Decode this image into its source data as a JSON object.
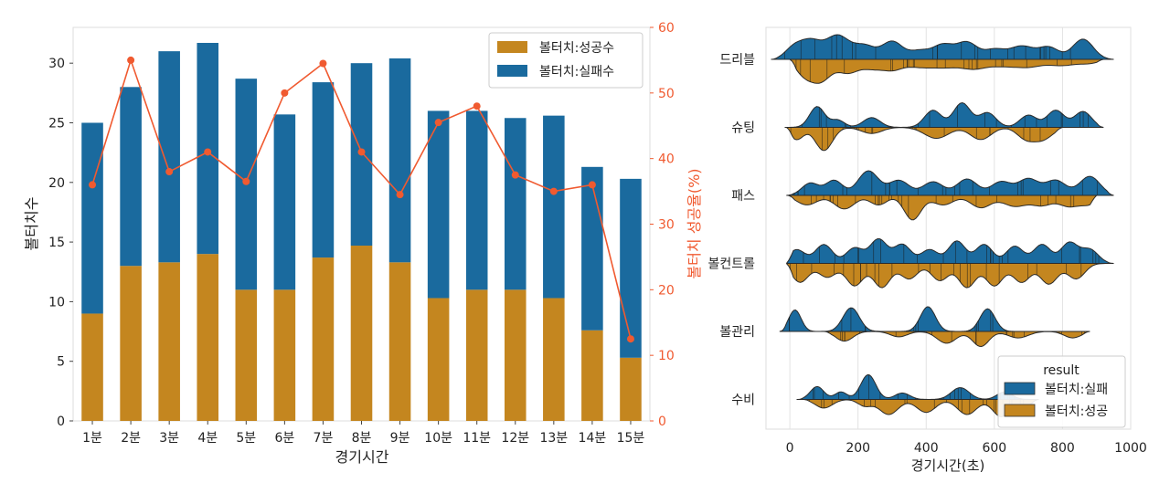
{
  "chart_data": [
    {
      "type": "bar",
      "subtype": "stacked-bar-with-secondary-line",
      "xlabel": "경기시간",
      "ylabel": "볼터치수",
      "y2label": "볼터치 성공율(%)",
      "categories": [
        "1분",
        "2분",
        "3분",
        "4분",
        "5분",
        "6분",
        "7분",
        "8분",
        "9분",
        "10분",
        "11분",
        "12분",
        "13분",
        "14분",
        "15분"
      ],
      "ylim": [
        0,
        33
      ],
      "yticks": [
        0,
        5,
        10,
        15,
        20,
        25,
        30
      ],
      "y2lim": [
        0,
        60
      ],
      "y2ticks": [
        0,
        10,
        20,
        30,
        40,
        50,
        60
      ],
      "series": [
        {
          "name": "볼터치:성공수",
          "color": "#c4861f",
          "values": [
            9,
            13,
            13.3,
            14,
            11,
            11,
            13.7,
            14.7,
            13.3,
            10.3,
            11,
            11,
            10.3,
            7.6,
            5.3
          ]
        },
        {
          "name": "볼터치:실패수",
          "color": "#1a6a9e",
          "values": [
            16,
            15,
            17.7,
            17.7,
            17.7,
            14.7,
            14.7,
            15.3,
            17.1,
            15.7,
            15,
            14.4,
            15.3,
            13.7,
            15
          ]
        }
      ],
      "line": {
        "name": "볼터치 성공율(%)",
        "color": "#f05a30",
        "axis": "right",
        "values": [
          36,
          55,
          38,
          41,
          36.5,
          50,
          54.5,
          41,
          34.5,
          45.5,
          48,
          37.5,
          35,
          36,
          12.5
        ]
      },
      "legend_position": "top-right",
      "grid": false
    },
    {
      "type": "violin",
      "subtype": "split-violin",
      "xlabel": "경기시간(초)",
      "xlim": [
        -70,
        1000
      ],
      "xticks": [
        0,
        200,
        400,
        600,
        800,
        1000
      ],
      "categories": [
        "드리블",
        "슈팅",
        "패스",
        "볼컨트롤",
        "볼관리",
        "수비"
      ],
      "legend_title": "result",
      "legend_position": "bottom-right",
      "grid": "vertical",
      "series": [
        {
          "name": "볼터치:실패",
          "color": "#1a6a9e"
        },
        {
          "name": "볼터치:성공",
          "color": "#c4861f"
        }
      ],
      "violins": [
        {
          "category": "드리블",
          "fail": {
            "range": [
              -55,
              950
            ],
            "peaks": [
              [
                10,
                0.45,
                25
              ],
              [
                60,
                0.75,
                30
              ],
              [
                140,
                1.0,
                35
              ],
              [
                220,
                0.55,
                30
              ],
              [
                300,
                0.75,
                30
              ],
              [
                380,
                0.35,
                30
              ],
              [
                450,
                0.6,
                30
              ],
              [
                520,
                0.7,
                30
              ],
              [
                600,
                0.4,
                30
              ],
              [
                680,
                0.55,
                35
              ],
              [
                760,
                0.5,
                30
              ],
              [
                860,
                0.85,
                30
              ]
            ]
          },
          "success": {
            "range": [
              0,
              920
            ],
            "peaks": [
              [
                40,
                0.55,
                25
              ],
              [
                90,
                0.9,
                30
              ],
              [
                170,
                0.55,
                30
              ],
              [
                240,
                0.35,
                30
              ],
              [
                300,
                0.4,
                30
              ],
              [
                380,
                0.3,
                40
              ],
              [
                460,
                0.3,
                40
              ],
              [
                540,
                0.35,
                35
              ],
              [
                620,
                0.25,
                40
              ],
              [
                700,
                0.3,
                40
              ],
              [
                800,
                0.25,
                40
              ],
              [
                880,
                0.15,
                30
              ]
            ]
          }
        },
        {
          "category": "슈팅",
          "fail": {
            "range": [
              -15,
              920
            ],
            "peaks": [
              [
                80,
                0.85,
                22
              ],
              [
                140,
                0.3,
                20
              ],
              [
                240,
                0.4,
                25
              ],
              [
                420,
                0.7,
                25
              ],
              [
                505,
                1.0,
                25
              ],
              [
                580,
                0.6,
                25
              ],
              [
                700,
                0.5,
                25
              ],
              [
                780,
                0.7,
                25
              ],
              [
                860,
                0.65,
                25
              ]
            ]
          },
          "success": {
            "range": [
              -10,
              800
            ],
            "peaks": [
              [
                20,
                0.5,
                20
              ],
              [
                100,
                0.95,
                25
              ],
              [
                240,
                0.25,
                30
              ],
              [
                430,
                0.45,
                35
              ],
              [
                560,
                0.5,
                30
              ],
              [
                690,
                0.4,
                25
              ],
              [
                740,
                0.5,
                30
              ]
            ]
          }
        },
        {
          "category": "패스",
          "fail": {
            "range": [
              -10,
              950
            ],
            "peaks": [
              [
                60,
                0.45,
                25
              ],
              [
                130,
                0.55,
                25
              ],
              [
                230,
                0.9,
                30
              ],
              [
                320,
                0.55,
                30
              ],
              [
                420,
                0.5,
                30
              ],
              [
                520,
                0.6,
                30
              ],
              [
                620,
                0.5,
                30
              ],
              [
                700,
                0.6,
                30
              ],
              [
                780,
                0.55,
                30
              ],
              [
                880,
                0.7,
                30
              ]
            ]
          },
          "success": {
            "range": [
              -5,
              900
            ],
            "peaks": [
              [
                50,
                0.35,
                30
              ],
              [
                160,
                0.5,
                30
              ],
              [
                260,
                0.35,
                25
              ],
              [
                360,
                0.9,
                25
              ],
              [
                450,
                0.35,
                30
              ],
              [
                560,
                0.45,
                30
              ],
              [
                660,
                0.4,
                35
              ],
              [
                740,
                0.35,
                30
              ],
              [
                820,
                0.4,
                30
              ],
              [
                880,
                0.3,
                25
              ]
            ]
          }
        },
        {
          "category": "볼컨트롤",
          "fail": {
            "range": [
              -10,
              950
            ],
            "peaks": [
              [
                20,
                0.4,
                25
              ],
              [
                100,
                0.55,
                25
              ],
              [
                190,
                0.45,
                25
              ],
              [
                260,
                0.7,
                25
              ],
              [
                330,
                0.55,
                25
              ],
              [
                410,
                0.4,
                25
              ],
              [
                490,
                0.65,
                25
              ],
              [
                570,
                0.55,
                25
              ],
              [
                660,
                0.5,
                25
              ],
              [
                740,
                0.55,
                25
              ],
              [
                820,
                0.6,
                25
              ],
              [
                880,
                0.4,
                25
              ]
            ]
          },
          "success": {
            "range": [
              -10,
              950
            ],
            "peaks": [
              [
                30,
                0.55,
                25
              ],
              [
                110,
                0.4,
                25
              ],
              [
                190,
                0.65,
                25
              ],
              [
                270,
                0.7,
                25
              ],
              [
                350,
                0.45,
                25
              ],
              [
                440,
                0.5,
                25
              ],
              [
                520,
                0.7,
                25
              ],
              [
                600,
                0.65,
                25
              ],
              [
                680,
                0.55,
                25
              ],
              [
                760,
                0.6,
                25
              ],
              [
                840,
                0.45,
                25
              ]
            ]
          }
        },
        {
          "category": "볼관리",
          "fail": {
            "range": [
              -30,
              700
            ],
            "peaks": [
              [
                15,
                1.0,
                18
              ],
              [
                180,
                1.1,
                24
              ],
              [
                405,
                1.15,
                22
              ],
              [
                580,
                1.05,
                22
              ]
            ]
          },
          "success": {
            "range": [
              100,
              880
            ],
            "peaks": [
              [
                160,
                0.45,
                25
              ],
              [
                320,
                0.25,
                25
              ],
              [
                460,
                0.55,
                28
              ],
              [
                560,
                0.7,
                24
              ],
              [
                670,
                0.3,
                30
              ],
              [
                830,
                0.3,
                25
              ]
            ]
          }
        },
        {
          "category": "수비",
          "fail": {
            "range": [
              20,
              730
            ],
            "peaks": [
              [
                80,
                0.6,
                20
              ],
              [
                150,
                0.35,
                18
              ],
              [
                230,
                1.15,
                22
              ],
              [
                330,
                0.3,
                22
              ],
              [
                500,
                0.55,
                26
              ],
              [
                630,
                0.35,
                22
              ]
            ]
          },
          "success": {
            "range": [
              40,
              730
            ],
            "peaks": [
              [
                100,
                0.4,
                25
              ],
              [
                220,
                0.3,
                20
              ],
              [
                290,
                0.7,
                28
              ],
              [
                400,
                0.6,
                28
              ],
              [
                520,
                0.7,
                28
              ],
              [
                620,
                0.8,
                25
              ],
              [
                690,
                0.3,
                20
              ]
            ]
          }
        }
      ]
    }
  ]
}
